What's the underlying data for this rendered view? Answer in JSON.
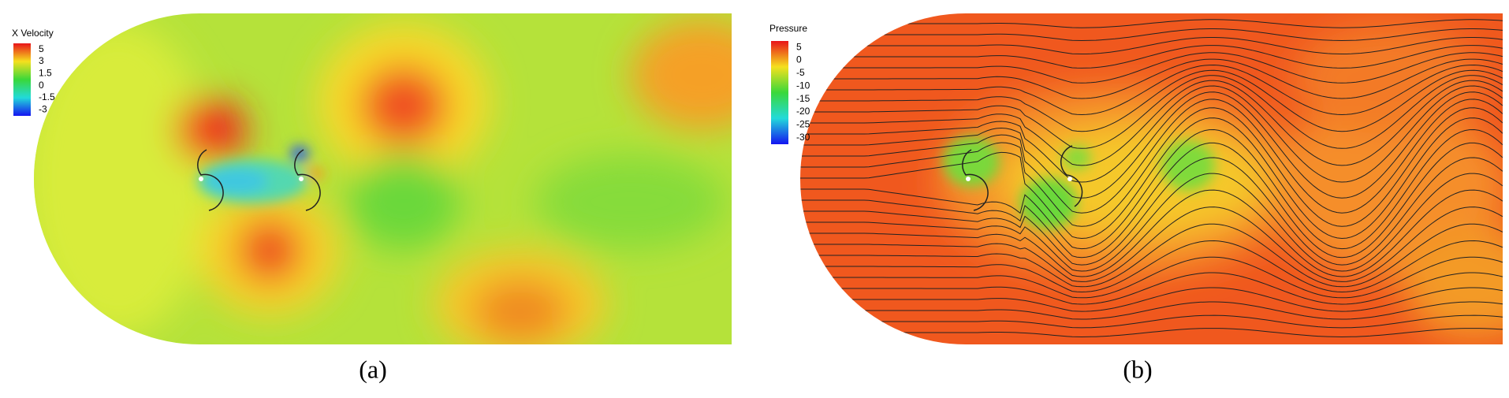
{
  "panels": [
    {
      "legend_title": "X Velocity",
      "legend_labels": [
        "5",
        "3",
        "1.5",
        "0",
        "-1.5",
        "-3"
      ],
      "caption": "(a)"
    },
    {
      "legend_title": "Pressure",
      "legend_labels": [
        "5",
        "0",
        "-5",
        "-10",
        "-15",
        "-20",
        "-25",
        "-30"
      ],
      "caption": "(b)"
    }
  ]
}
